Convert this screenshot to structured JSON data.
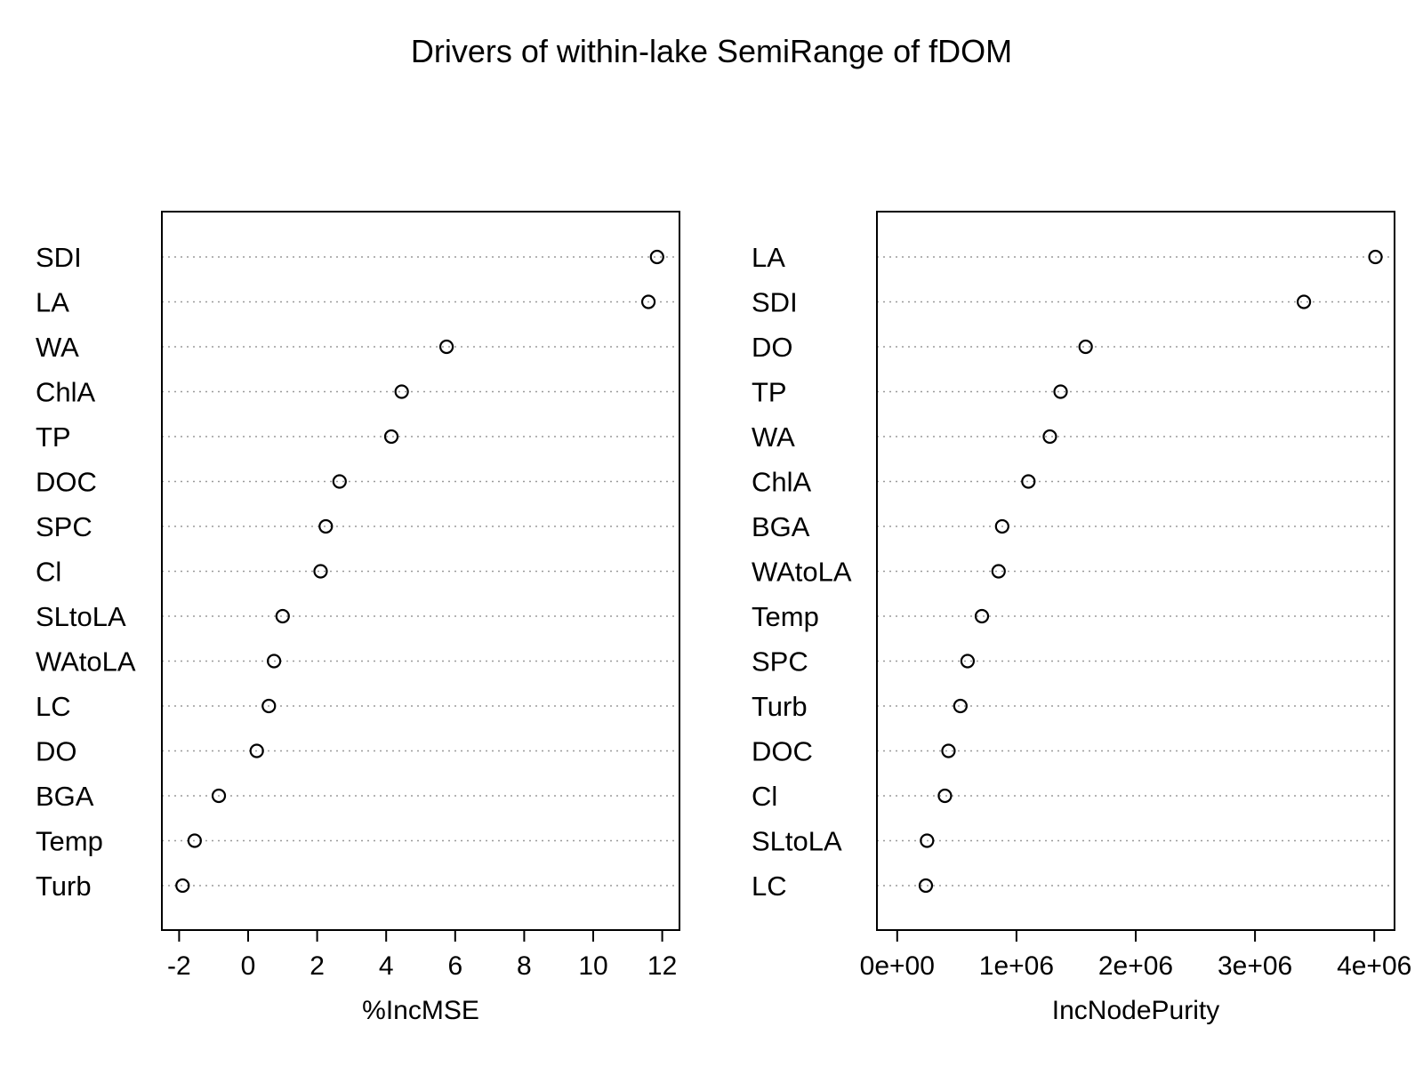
{
  "title": "Drivers of within-lake SemiRange of fDOM",
  "chart_data": [
    {
      "type": "scatter",
      "xlabel": "%IncMSE",
      "xlim": [
        -2.5,
        12.5
      ],
      "xticks": [
        -2,
        0,
        2,
        4,
        6,
        8,
        10,
        12
      ],
      "xtick_labels": [
        "-2",
        "0",
        "2",
        "4",
        "6",
        "8",
        "10",
        "12"
      ],
      "grid": "dotted horizontal guides",
      "categories": [
        "SDI",
        "LA",
        "WA",
        "ChlA",
        "TP",
        "DOC",
        "SPC",
        "Cl",
        "SLtoLA",
        "WAtoLA",
        "LC",
        "DO",
        "BGA",
        "Temp",
        "Turb"
      ],
      "values": [
        11.85,
        11.6,
        5.75,
        4.45,
        4.15,
        2.65,
        2.25,
        2.1,
        1.0,
        0.75,
        0.6,
        0.25,
        -0.85,
        -1.55,
        -1.9
      ]
    },
    {
      "type": "scatter",
      "xlabel": "IncNodePurity",
      "xlim": [
        -170000,
        4170000
      ],
      "xticks": [
        0,
        1000000,
        2000000,
        3000000,
        4000000
      ],
      "xtick_labels": [
        "0e+00",
        "1e+06",
        "2e+06",
        "3e+06",
        "4e+06"
      ],
      "grid": "dotted horizontal guides",
      "categories": [
        "LA",
        "SDI",
        "DO",
        "TP",
        "WA",
        "ChlA",
        "BGA",
        "WAtoLA",
        "Temp",
        "SPC",
        "Turb",
        "DOC",
        "Cl",
        "SLtoLA",
        "LC"
      ],
      "values": [
        4010000,
        3410000,
        1580000,
        1370000,
        1280000,
        1100000,
        880000,
        850000,
        710000,
        590000,
        530000,
        430000,
        400000,
        250000,
        240000
      ]
    }
  ],
  "colors": {
    "points": "#000000",
    "guides": "#9a9a9a",
    "frame": "#000000"
  }
}
